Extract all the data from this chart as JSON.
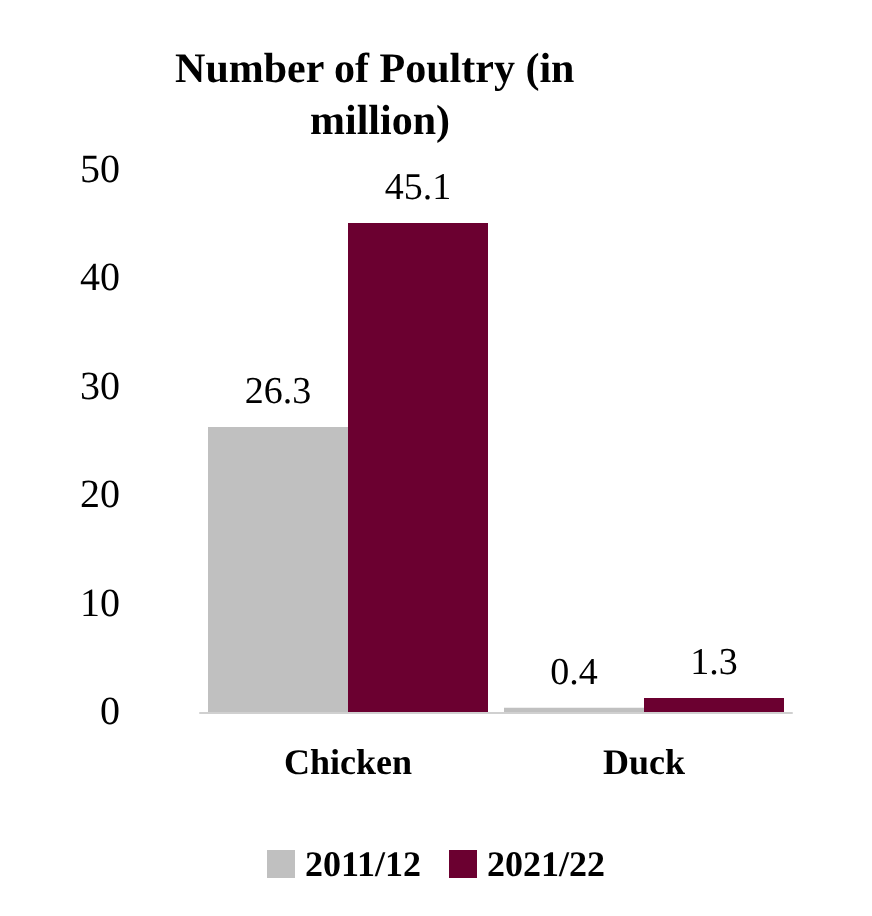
{
  "chart_data": {
    "type": "bar",
    "title": "Number of Poultry (in million)",
    "categories": [
      "Chicken",
      "Duck"
    ],
    "series": [
      {
        "name": "2011/12",
        "color": "#c0c0c0",
        "values": [
          26.3,
          0.4
        ]
      },
      {
        "name": "2021/22",
        "color": "#6b0030",
        "values": [
          45.1,
          1.3
        ]
      }
    ],
    "ylim": [
      0,
      50
    ],
    "yticks": [
      0,
      10,
      20,
      30,
      40,
      50
    ],
    "grid": false,
    "legend": "bottom",
    "data_labels": true
  }
}
